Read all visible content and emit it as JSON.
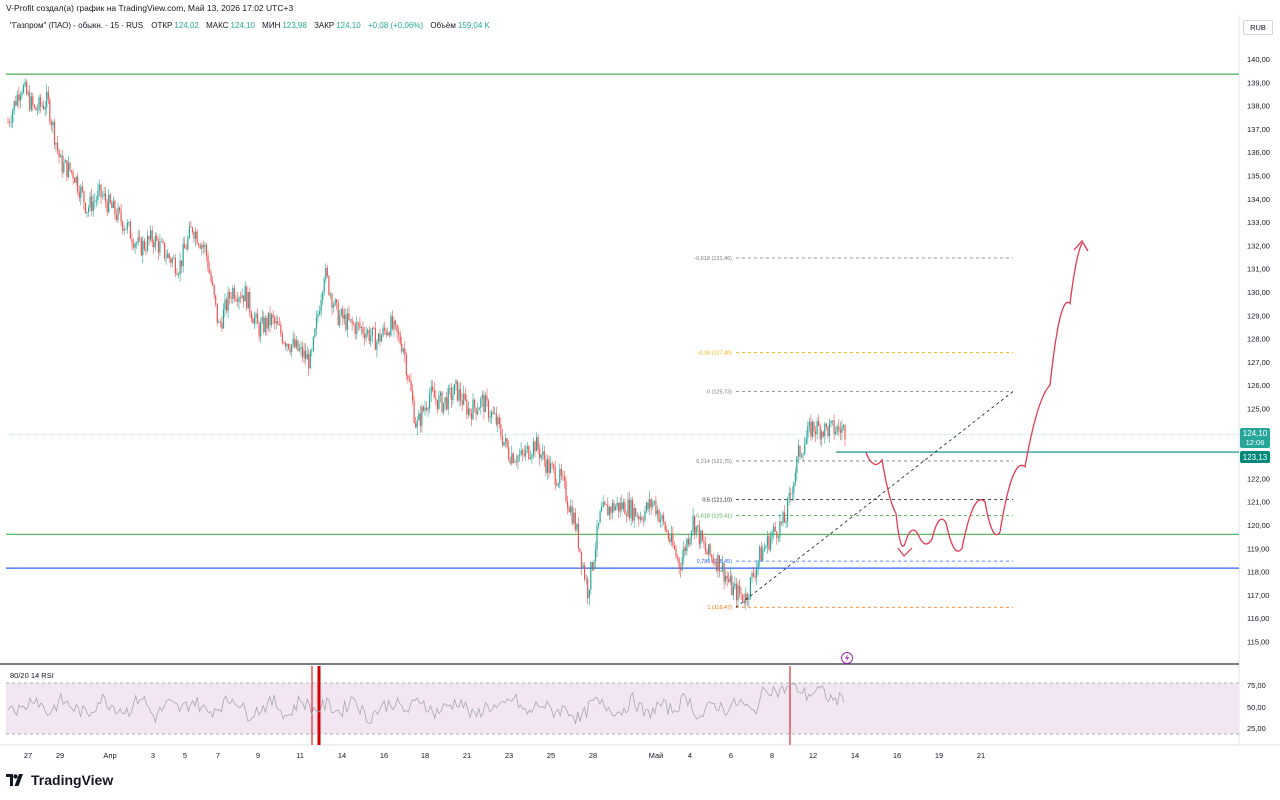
{
  "header": {
    "author_line": "V-Profit создал(а) график на TradingView.com, Май 13, 2026 17:02 UTC+3"
  },
  "legend": {
    "symbol": "\"Газпром\" (ПАО) - обыкн. · 15 · RUS",
    "open_label": "ОТКР",
    "open_value": "124,02",
    "high_label": "МАКС",
    "high_value": "124,10",
    "low_label": "МИН",
    "low_value": "123,98",
    "close_label": "ЗАКР",
    "close_value": "124,10",
    "change": "+0,08 (+0,06%)",
    "volume_label": "Объём",
    "volume_value": "159,04 K"
  },
  "currency": "RUB",
  "price_badges": {
    "last": "124,10",
    "timer": "12:06",
    "level": "123,13"
  },
  "rsi": {
    "title": "80/20 14 RSI",
    "ticks": [
      "75,00",
      "50,00",
      "25,00"
    ]
  },
  "footer": {
    "brand": "TradingView"
  },
  "colors": {
    "up": "#26a69a",
    "down": "#ef5350",
    "green_level": "#4caf50",
    "blue_level": "#2962ff",
    "teal_level": "#00897b",
    "arrow": "#e53950",
    "rsi_fill": "#f3e6f3",
    "rsi_line": "#b2b5be"
  },
  "chart_data": {
    "type": "candlestick",
    "timeframe": "15",
    "y_axis_ticks": [
      "140,00",
      "139,00",
      "138,00",
      "137,00",
      "136,00",
      "135,00",
      "134,00",
      "133,00",
      "132,00",
      "131,00",
      "130,00",
      "129,00",
      "128,00",
      "127,00",
      "126,00",
      "125,00",
      "124,00",
      "123,00",
      "122,00",
      "121,00",
      "120,00",
      "119,00",
      "118,00",
      "117,00",
      "116,00",
      "115,00"
    ],
    "ylim": [
      114.5,
      141.0
    ],
    "x_axis_ticks": [
      "27",
      "29",
      "Апр",
      "3",
      "5",
      "7",
      "9",
      "11",
      "14",
      "16",
      "18",
      "21",
      "23",
      "25",
      "28",
      "Май",
      "4",
      "6",
      "8",
      "12",
      "14",
      "16",
      "19",
      "21"
    ],
    "price_path": [
      [
        0,
        137.3
      ],
      [
        1.5,
        138.9
      ],
      [
        3,
        137.8
      ],
      [
        4,
        138.2
      ],
      [
        5,
        135.5
      ],
      [
        6,
        135.1
      ],
      [
        7,
        133.6
      ],
      [
        8,
        134.2
      ],
      [
        9,
        133.5
      ],
      [
        10,
        132.8
      ],
      [
        11,
        131.9
      ],
      [
        12,
        132.3
      ],
      [
        13,
        131.6
      ],
      [
        14,
        131.1
      ],
      [
        15,
        132.8
      ],
      [
        16,
        131.8
      ],
      [
        17,
        128.5
      ],
      [
        18,
        130.1
      ],
      [
        19,
        129.9
      ],
      [
        20,
        128.4
      ],
      [
        21,
        128.8
      ],
      [
        22,
        128.0
      ],
      [
        23,
        127.5
      ],
      [
        24,
        127.0
      ],
      [
        25,
        130.9
      ],
      [
        26,
        129.0
      ],
      [
        27,
        128.6
      ],
      [
        28,
        128.4
      ],
      [
        29,
        127.9
      ],
      [
        30,
        128.6
      ],
      [
        31,
        127.7
      ],
      [
        32,
        124.2
      ],
      [
        33,
        125.6
      ],
      [
        34,
        125.2
      ],
      [
        35,
        125.8
      ],
      [
        36,
        124.9
      ],
      [
        37,
        125.3
      ],
      [
        38,
        124.5
      ],
      [
        39,
        123.1
      ],
      [
        40,
        122.9
      ],
      [
        41,
        123.5
      ],
      [
        42,
        122.5
      ],
      [
        43,
        121.9
      ],
      [
        44,
        120.2
      ],
      [
        45,
        117.2
      ],
      [
        46,
        120.5
      ],
      [
        47,
        120.8
      ],
      [
        48,
        120.8
      ],
      [
        49,
        120.4
      ],
      [
        50,
        121.0
      ],
      [
        51,
        119.7
      ],
      [
        52,
        118.3
      ],
      [
        53,
        120.2
      ],
      [
        54,
        118.8
      ],
      [
        55,
        118.4
      ],
      [
        56,
        117.2
      ],
      [
        57,
        116.9
      ],
      [
        58,
        118.6
      ],
      [
        59,
        119.6
      ],
      [
        60,
        120.2
      ],
      [
        61,
        123.0
      ],
      [
        62,
        124.2
      ],
      [
        63,
        124.1
      ]
    ],
    "levels": [
      {
        "value": 139.35,
        "color": "green"
      },
      {
        "value": 119.6,
        "color": "green"
      },
      {
        "value": 118.15,
        "color": "blue"
      },
      {
        "value": 123.13,
        "color": "teal"
      }
    ],
    "fibonacci": [
      {
        "label": "-0,618 (131,46)",
        "value": 131.46
      },
      {
        "label": "-0,18 (127,40)",
        "value": 127.4
      },
      {
        "label": "0 (125,73)",
        "value": 125.73
      },
      {
        "label": "0,214 (122,75)",
        "value": 122.75
      },
      {
        "label": "0,5 (121,10)",
        "value": 121.1
      },
      {
        "label": "0,618 (120,41)",
        "value": 120.41
      },
      {
        "label": "0,786 (118,45)",
        "value": 118.45
      },
      {
        "label": "1 (116,47)",
        "value": 116.47
      }
    ],
    "trendline": {
      "from": 116.47,
      "to": 125.73
    },
    "forecast_path": [
      123.1,
      122.8,
      120.5,
      119.2,
      119.6,
      119.4,
      120.1,
      119.0,
      121.0,
      119.7,
      122.5,
      126.0,
      129.5,
      132.1
    ],
    "rsi_series": [
      55,
      48,
      62,
      45,
      58,
      50,
      44,
      60,
      52,
      47,
      63,
      41,
      55,
      49,
      58,
      46,
      53,
      61,
      44,
      50,
      57,
      42,
      59,
      48,
      54,
      46,
      62,
      39,
      51,
      56,
      47,
      60,
      45,
      52,
      58,
      41,
      53,
      49,
      61,
      44,
      55,
      47,
      50,
      38,
      57,
      52,
      46,
      59,
      43,
      54,
      48,
      62,
      40,
      55,
      49,
      57,
      45,
      71,
      66,
      74,
      63,
      68,
      58,
      60
    ]
  }
}
